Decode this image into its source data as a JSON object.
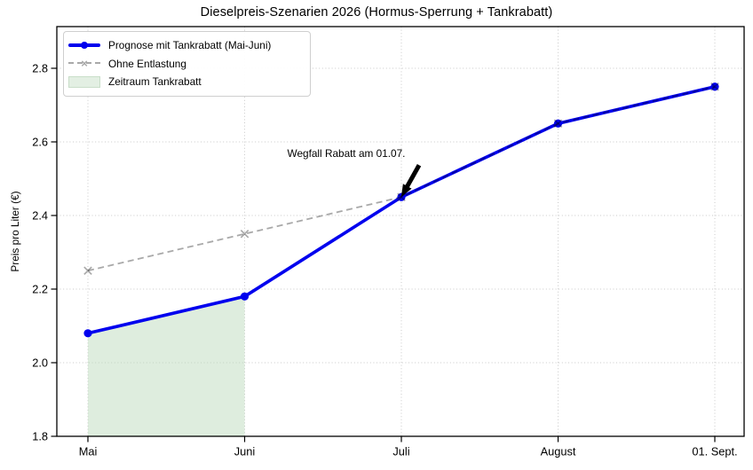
{
  "chart_data": {
    "type": "line",
    "title": "Dieselpreis-Szenarien 2026 (Hormus-Sperrung + Tankrabatt)",
    "ylabel": "Preis pro Liter (€)",
    "xlabel": "",
    "categories": [
      "Mai",
      "Juni",
      "Juli",
      "August",
      "01. Sept."
    ],
    "series": [
      {
        "name": "Prognose mit Tankrabatt (Mai-Juni)",
        "values": [
          2.08,
          2.18,
          2.45,
          2.65,
          2.75
        ],
        "color": "#0000ee",
        "line_style": "solid",
        "marker": "circle"
      },
      {
        "name": "Ohne Entlastung",
        "values": [
          2.25,
          2.35,
          2.45,
          2.65,
          2.75
        ],
        "color": "#a9a9a9",
        "line_style": "dashed",
        "marker": "x"
      }
    ],
    "shaded_region": {
      "label": "Zeitraum Tankrabatt",
      "from_category": "Mai",
      "to_category": "Juni",
      "fill_color": "#e3efe3",
      "border_color": "#c9dec9"
    },
    "annotation": {
      "text": "Wegfall Rabatt am 01.07.",
      "target_category": "Juli",
      "target_value": 2.45,
      "arrow_color": "#000000"
    },
    "ylim": [
      1.8,
      2.91
    ],
    "yticks": [
      1.8,
      2.0,
      2.2,
      2.4,
      2.6,
      2.8
    ],
    "grid": true,
    "grid_style": "dotted",
    "legend_position": "upper-left"
  }
}
